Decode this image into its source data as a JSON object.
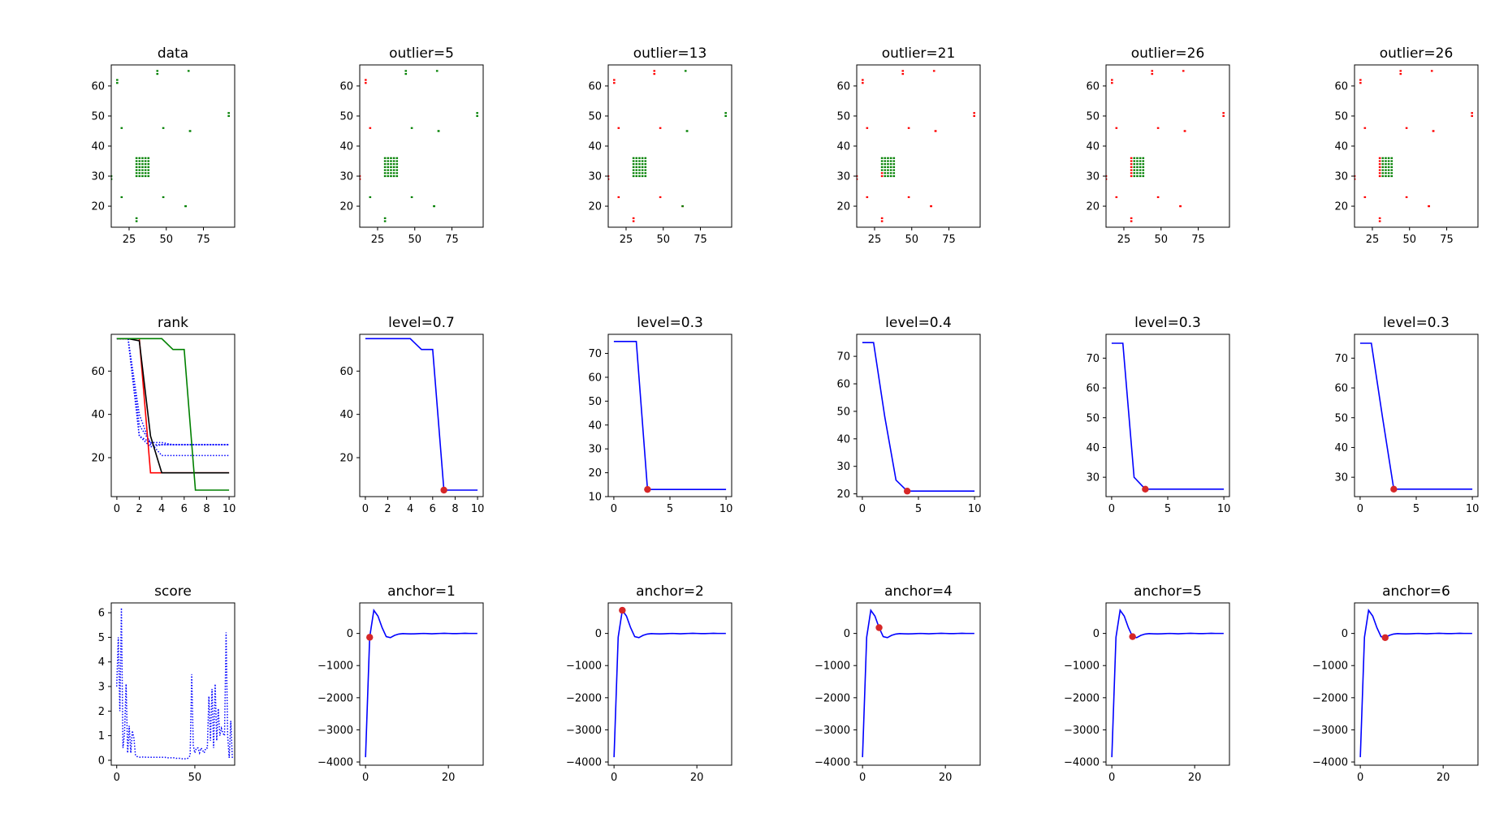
{
  "colors": {
    "inlier": "#008000",
    "outlier": "#ff0000",
    "curve": "#0000ff",
    "marker": "#d62728"
  },
  "chart_data": [
    {
      "type": "scatter",
      "title": "data",
      "xticks": [
        25,
        50,
        75
      ],
      "yticks": [
        20,
        30,
        40,
        50,
        60
      ],
      "xlim": [
        13,
        96
      ],
      "ylim": [
        13,
        67
      ],
      "marker_type": "scatter",
      "outlier_count": 0,
      "points": [
        [
          13,
          29
        ],
        [
          13,
          30
        ],
        [
          17,
          61
        ],
        [
          17,
          62
        ],
        [
          20,
          46
        ],
        [
          20,
          23
        ],
        [
          30,
          15
        ],
        [
          30,
          16
        ],
        [
          44,
          64
        ],
        [
          44,
          65
        ],
        [
          48,
          46
        ],
        [
          48,
          23
        ],
        [
          63,
          20
        ],
        [
          63,
          20
        ],
        [
          65,
          65
        ],
        [
          66,
          45
        ],
        [
          66,
          45
        ],
        [
          92,
          50
        ],
        [
          92,
          51
        ],
        [
          30,
          30
        ],
        [
          30,
          31
        ],
        [
          30,
          32
        ],
        [
          30,
          33
        ],
        [
          30,
          34
        ],
        [
          30,
          35
        ],
        [
          30,
          36
        ],
        [
          32,
          30
        ],
        [
          32,
          31
        ],
        [
          32,
          32
        ],
        [
          32,
          33
        ],
        [
          32,
          34
        ],
        [
          32,
          35
        ],
        [
          32,
          36
        ],
        [
          34,
          30
        ],
        [
          34,
          31
        ],
        [
          34,
          32
        ],
        [
          34,
          33
        ],
        [
          34,
          34
        ],
        [
          34,
          35
        ],
        [
          34,
          36
        ],
        [
          36,
          30
        ],
        [
          36,
          31
        ],
        [
          36,
          32
        ],
        [
          36,
          33
        ],
        [
          36,
          34
        ],
        [
          36,
          35
        ],
        [
          36,
          36
        ],
        [
          38,
          30
        ],
        [
          38,
          31
        ],
        [
          38,
          32
        ],
        [
          38,
          33
        ],
        [
          38,
          34
        ],
        [
          38,
          35
        ],
        [
          38,
          36
        ]
      ]
    },
    {
      "type": "scatter",
      "title": "outlier=5",
      "xticks": [
        25,
        50,
        75
      ],
      "yticks": [
        20,
        30,
        40,
        50,
        60
      ],
      "xlim": [
        13,
        96
      ],
      "ylim": [
        13,
        67
      ],
      "outlier_count": 5
    },
    {
      "type": "scatter",
      "title": "outlier=13",
      "xticks": [
        25,
        50,
        75
      ],
      "yticks": [
        20,
        30,
        40,
        50,
        60
      ],
      "xlim": [
        13,
        96
      ],
      "ylim": [
        13,
        67
      ],
      "outlier_count": 13
    },
    {
      "type": "scatter",
      "title": "outlier=21",
      "xticks": [
        25,
        50,
        75
      ],
      "yticks": [
        20,
        30,
        40,
        50,
        60
      ],
      "xlim": [
        13,
        96
      ],
      "ylim": [
        13,
        67
      ],
      "outlier_count": 21
    },
    {
      "type": "scatter",
      "title": "outlier=26",
      "xticks": [
        25,
        50,
        75
      ],
      "yticks": [
        20,
        30,
        40,
        50,
        60
      ],
      "xlim": [
        13,
        96
      ],
      "ylim": [
        13,
        67
      ],
      "outlier_count": 26
    },
    {
      "type": "scatter",
      "title": "outlier=26",
      "xticks": [
        25,
        50,
        75
      ],
      "yticks": [
        20,
        30,
        40,
        50,
        60
      ],
      "xlim": [
        13,
        96
      ],
      "ylim": [
        13,
        67
      ],
      "outlier_count": 26
    },
    {
      "type": "line",
      "title": "rank",
      "xticks": [
        0,
        2,
        4,
        6,
        8,
        10
      ],
      "yticks": [
        20,
        40,
        60
      ],
      "xlim": [
        -0.5,
        10.5
      ],
      "ylim": [
        2,
        77
      ],
      "series": [
        {
          "color": "#0000ff",
          "style": "dotted",
          "y": [
            75,
            75,
            30,
            27,
            27,
            26,
            26,
            26,
            26,
            26,
            26
          ]
        },
        {
          "color": "#0000ff",
          "style": "dotted",
          "y": [
            75,
            75,
            40,
            26,
            26,
            26,
            26,
            26,
            26,
            26,
            26
          ]
        },
        {
          "color": "#0000ff",
          "style": "dotted",
          "y": [
            75,
            75,
            35,
            27,
            21,
            21,
            21,
            21,
            21,
            21,
            21
          ]
        },
        {
          "color": "#0000ff",
          "style": "dotted",
          "y": [
            75,
            75,
            30,
            25,
            26,
            26,
            26,
            26,
            26,
            26,
            26
          ]
        },
        {
          "color": "#ff0000",
          "style": "solid",
          "y": [
            75,
            75,
            75,
            13,
            13,
            13,
            13,
            13,
            13,
            13,
            13
          ]
        },
        {
          "color": "#000000",
          "style": "solid",
          "y": [
            75,
            75,
            74,
            30,
            13,
            13,
            13,
            13,
            13,
            13,
            13
          ]
        },
        {
          "color": "#008000",
          "style": "solid",
          "y": [
            75,
            75,
            75,
            75,
            75,
            70,
            70,
            5,
            5,
            5,
            5
          ]
        }
      ]
    },
    {
      "type": "line",
      "title": "level=0.7",
      "xticks": [
        0,
        2,
        4,
        6,
        8,
        10
      ],
      "yticks": [
        20,
        40,
        60
      ],
      "xlim": [
        -0.5,
        10.5
      ],
      "ylim": [
        2,
        77
      ],
      "series": [
        {
          "color": "#0000ff",
          "style": "solid",
          "y": [
            75,
            75,
            75,
            75,
            75,
            70,
            70,
            5,
            5,
            5,
            5
          ]
        }
      ],
      "marker": {
        "x": 7,
        "y": 5
      }
    },
    {
      "type": "line",
      "title": "level=0.3",
      "xticks": [
        0,
        5,
        10
      ],
      "yticks": [
        10,
        20,
        30,
        40,
        50,
        60,
        70
      ],
      "xlim": [
        -0.5,
        10.5
      ],
      "ylim": [
        10,
        78
      ],
      "series": [
        {
          "color": "#0000ff",
          "style": "solid",
          "y": [
            75,
            75,
            75,
            13,
            13,
            13,
            13,
            13,
            13,
            13,
            13
          ]
        }
      ],
      "marker": {
        "x": 3,
        "y": 13
      }
    },
    {
      "type": "line",
      "title": "level=0.4",
      "xticks": [
        0,
        5,
        10
      ],
      "yticks": [
        20,
        30,
        40,
        50,
        60,
        70
      ],
      "xlim": [
        -0.5,
        10.5
      ],
      "ylim": [
        19,
        78
      ],
      "series": [
        {
          "color": "#0000ff",
          "style": "solid",
          "y": [
            75,
            75,
            48,
            25,
            21,
            21,
            21,
            21,
            21,
            21,
            21
          ]
        }
      ],
      "marker": {
        "x": 4,
        "y": 21
      }
    },
    {
      "type": "line",
      "title": "level=0.3",
      "xticks": [
        0,
        5,
        10
      ],
      "yticks": [
        30,
        40,
        50,
        60,
        70
      ],
      "xlim": [
        -0.5,
        10.5
      ],
      "ylim": [
        23.5,
        78
      ],
      "series": [
        {
          "color": "#0000ff",
          "style": "solid",
          "y": [
            75,
            75,
            30,
            26,
            26,
            26,
            26,
            26,
            26,
            26,
            26
          ]
        }
      ],
      "marker": {
        "x": 3,
        "y": 26
      }
    },
    {
      "type": "line",
      "title": "level=0.3",
      "xticks": [
        0,
        5,
        10
      ],
      "yticks": [
        30,
        40,
        50,
        60,
        70
      ],
      "xlim": [
        -0.5,
        10.5
      ],
      "ylim": [
        23.5,
        78
      ],
      "series": [
        {
          "color": "#0000ff",
          "style": "solid",
          "y": [
            75,
            75,
            50,
            26,
            26,
            26,
            26,
            26,
            26,
            26,
            26
          ]
        }
      ],
      "marker": {
        "x": 3,
        "y": 26
      }
    },
    {
      "type": "line",
      "title": "score",
      "xticks": [
        0,
        50
      ],
      "yticks": [
        0,
        1,
        2,
        3,
        4,
        5,
        6
      ],
      "xlim": [
        -3.5,
        75.5
      ],
      "ylim": [
        -0.2,
        6.4
      ],
      "series": [
        {
          "color": "#0000ff",
          "style": "dotted",
          "y": [
            3.0,
            5.0,
            2.0,
            6.2,
            0.5,
            1.1,
            3.1,
            0.3,
            1.4,
            0.3,
            1.2,
            0.9,
            0.2,
            0.15,
            0.15,
            0.12,
            0.12,
            0.14,
            0.13,
            0.12,
            0.12,
            0.12,
            0.12,
            0.12,
            0.12,
            0.12,
            0.12,
            0.12,
            0.12,
            0.12,
            0.12,
            0.12,
            0.1,
            0.1,
            0.1,
            0.1,
            0.1,
            0.1,
            0.08,
            0.08,
            0.08,
            0.08,
            0.06,
            0.06,
            0.06,
            0.06,
            0.1,
            0.2,
            3.5,
            0.6,
            0.3,
            0.5,
            0.5,
            0.3,
            0.5,
            0.4,
            0.3,
            0.5,
            0.5,
            2.6,
            0.8,
            2.9,
            0.5,
            3.1,
            0.8,
            2.1,
            1.0,
            1.3,
            1.1,
            1.0,
            5.2,
            1.0,
            0.1,
            1.6,
            0.1
          ]
        }
      ]
    },
    {
      "type": "line",
      "title": "anchor=1",
      "xticks": [
        0,
        20
      ],
      "yticks": [
        0,
        -1000,
        -2000,
        -3000,
        -4000
      ],
      "xlim": [
        -1.4,
        28.4
      ],
      "ylim": [
        -4100,
        950
      ],
      "series": [
        {
          "color": "#0000ff",
          "style": "solid",
          "y": [
            -3850,
            -120,
            720,
            540,
            180,
            -100,
            -130,
            -60,
            -20,
            -5,
            -10,
            -15,
            -10,
            -5,
            0,
            -5,
            -10,
            -5,
            0,
            5,
            0,
            -5,
            -5,
            0,
            5,
            0,
            0,
            0
          ]
        }
      ],
      "marker": {
        "x": 1,
        "y": -120
      }
    },
    {
      "type": "line",
      "title": "anchor=2",
      "xticks": [
        0,
        20
      ],
      "yticks": [
        0,
        -1000,
        -2000,
        -3000,
        -4000
      ],
      "xlim": [
        -1.4,
        28.4
      ],
      "ylim": [
        -4100,
        950
      ],
      "series": [
        {
          "color": "#0000ff",
          "style": "solid",
          "y": [
            -3850,
            -120,
            720,
            540,
            180,
            -100,
            -130,
            -60,
            -20,
            -5,
            -10,
            -15,
            -10,
            -5,
            0,
            -5,
            -10,
            -5,
            0,
            5,
            0,
            -5,
            -5,
            0,
            5,
            0,
            0,
            0
          ]
        }
      ],
      "marker": {
        "x": 2,
        "y": 720
      }
    },
    {
      "type": "line",
      "title": "anchor=4",
      "xticks": [
        0,
        20
      ],
      "yticks": [
        0,
        -1000,
        -2000,
        -3000,
        -4000
      ],
      "xlim": [
        -1.4,
        28.4
      ],
      "ylim": [
        -4100,
        950
      ],
      "series": [
        {
          "color": "#0000ff",
          "style": "solid",
          "y": [
            -3850,
            -120,
            720,
            540,
            180,
            -100,
            -130,
            -60,
            -20,
            -5,
            -10,
            -15,
            -10,
            -5,
            0,
            -5,
            -10,
            -5,
            0,
            5,
            0,
            -5,
            -5,
            0,
            5,
            0,
            0,
            0
          ]
        }
      ],
      "marker": {
        "x": 4,
        "y": 180
      }
    },
    {
      "type": "line",
      "title": "anchor=5",
      "xticks": [
        0,
        20
      ],
      "yticks": [
        0,
        -1000,
        -2000,
        -3000,
        -4000
      ],
      "xlim": [
        -1.4,
        28.4
      ],
      "ylim": [
        -4100,
        950
      ],
      "series": [
        {
          "color": "#0000ff",
          "style": "solid",
          "y": [
            -3850,
            -120,
            720,
            540,
            180,
            -100,
            -130,
            -60,
            -20,
            -5,
            -10,
            -15,
            -10,
            -5,
            0,
            -5,
            -10,
            -5,
            0,
            5,
            0,
            -5,
            -5,
            0,
            5,
            0,
            0,
            0
          ]
        }
      ],
      "marker": {
        "x": 5,
        "y": -100
      }
    },
    {
      "type": "line",
      "title": "anchor=6",
      "xticks": [
        0,
        20
      ],
      "yticks": [
        0,
        -1000,
        -2000,
        -3000,
        -4000
      ],
      "xlim": [
        -1.4,
        28.4
      ],
      "ylim": [
        -4100,
        950
      ],
      "series": [
        {
          "color": "#0000ff",
          "style": "solid",
          "y": [
            -3850,
            -120,
            720,
            540,
            180,
            -100,
            -130,
            -60,
            -20,
            -5,
            -10,
            -15,
            -10,
            -5,
            0,
            -5,
            -10,
            -5,
            0,
            5,
            0,
            -5,
            -5,
            0,
            5,
            0,
            0,
            0
          ]
        }
      ],
      "marker": {
        "x": 6,
        "y": -130
      }
    }
  ]
}
